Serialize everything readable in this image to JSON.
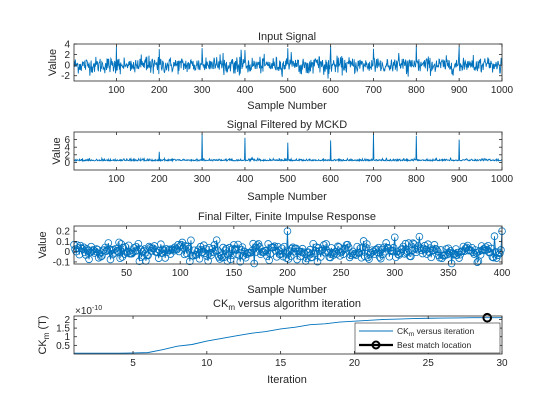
{
  "figure": {
    "background": "#ffffff",
    "signal_color": "#0072bd",
    "text_color": "#262626"
  },
  "chart_data": [
    {
      "type": "line",
      "title": "Input Signal",
      "xlabel": "Sample Number",
      "ylabel": "Value",
      "xlim": [
        1,
        1000
      ],
      "ylim": [
        -3,
        4
      ],
      "xticks": [
        100,
        200,
        300,
        400,
        500,
        600,
        700,
        800,
        900,
        1000
      ],
      "yticks": [
        -2,
        0,
        2,
        4
      ],
      "grid": false,
      "series": [
        {
          "description": "noisy vibration signal with periodic impulses",
          "n": 1000,
          "noise_std": 0.9,
          "impulse_positions": [
            100,
            200,
            300,
            400,
            500,
            600,
            700,
            800,
            900
          ],
          "impulse_height": 4
        }
      ]
    },
    {
      "type": "line",
      "title": "Signal Filtered by MCKD",
      "xlabel": "Sample Number",
      "ylabel": "Value",
      "xlim": [
        1,
        1000
      ],
      "ylim": [
        -2,
        8
      ],
      "xticks": [
        100,
        200,
        300,
        400,
        500,
        600,
        700,
        800,
        900,
        1000
      ],
      "yticks": [
        0,
        2,
        4,
        6
      ],
      "grid": false,
      "series": [
        {
          "description": "deconvolved signal with sharp periodic spikes",
          "n": 1000,
          "noise_std": 0.25,
          "baseline": 0.4,
          "spike_positions": [
            200,
            300,
            400,
            500,
            600,
            700,
            800,
            900
          ],
          "spike_heights": [
            2.8,
            7.5,
            6.5,
            5.2,
            5.8,
            7.5,
            7.0,
            6.0
          ]
        }
      ]
    },
    {
      "type": "line",
      "title": "Final Filter, Finite Impulse Response",
      "xlabel": "Sample Number",
      "ylabel": "Value",
      "xlim": [
        1,
        400
      ],
      "ylim": [
        -0.12,
        0.25
      ],
      "xticks": [
        50,
        100,
        150,
        200,
        250,
        300,
        350,
        400
      ],
      "yticks": [
        -0.1,
        0,
        0.1,
        0.2
      ],
      "ytick_labels": [
        "-0.1",
        "0",
        "0.1",
        "0.2"
      ],
      "grid": false,
      "marker": "circle",
      "series": [
        {
          "description": "filter coefficients with circle markers",
          "n": 400,
          "noise_std": 0.045,
          "peaks": [
            [
              200,
              0.2
            ],
            [
              300,
              0.14
            ],
            [
              400,
              0.2
            ]
          ]
        }
      ]
    },
    {
      "type": "line",
      "title": "CK",
      "title_subscript": "m",
      "title_suffix": " versus algorithm iteration",
      "xlabel": "Iteration",
      "ylabel": "CK",
      "ylabel_subscript": "m",
      "ylabel_suffix": " (T)",
      "exponent_label": "×10",
      "exponent_power": "-10",
      "xlim": [
        1,
        30
      ],
      "ylim": [
        0,
        2.2
      ],
      "xticks": [
        5,
        10,
        15,
        20,
        25,
        30
      ],
      "yticks": [
        0.5,
        1,
        1.5,
        2
      ],
      "ytick_labels": [
        "0.5",
        "1",
        "1.5",
        "2"
      ],
      "grid": false,
      "series": [
        {
          "name": "CK",
          "name_subscript": "m",
          "name_suffix": " versus iteration",
          "x": [
            1,
            2,
            3,
            4,
            5,
            6,
            7,
            8,
            9,
            10,
            11,
            12,
            13,
            14,
            15,
            16,
            17,
            18,
            19,
            20,
            21,
            22,
            23,
            24,
            25,
            26,
            27,
            28,
            29,
            30
          ],
          "y": [
            0.05,
            0.05,
            0.05,
            0.05,
            0.06,
            0.08,
            0.25,
            0.45,
            0.55,
            0.75,
            0.9,
            1.05,
            1.2,
            1.3,
            1.45,
            1.55,
            1.7,
            1.75,
            1.85,
            1.9,
            1.95,
            2.0,
            2.02,
            2.05,
            2.07,
            2.08,
            2.09,
            2.1,
            2.1,
            2.1
          ]
        },
        {
          "name": "Best match location",
          "x": [
            29
          ],
          "y": [
            2.1
          ],
          "marker": "circle"
        }
      ],
      "legend": {
        "location": "bottom-right",
        "entries": [
          {
            "label": "CK",
            "sub": "m",
            "suffix": " versus iteration"
          },
          {
            "label": "Best match location"
          }
        ]
      }
    }
  ]
}
